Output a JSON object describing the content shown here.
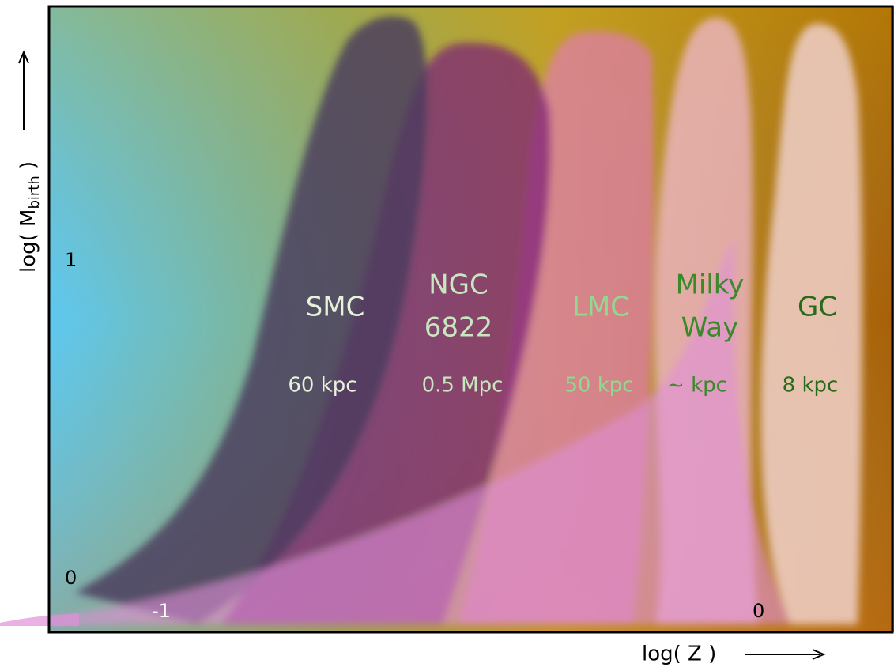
{
  "axes": {
    "y_label": {
      "main": "log( M",
      "sub": "birth",
      "end": " )"
    },
    "x_label": "log( Z )",
    "y_ticks": [
      "1",
      "0"
    ],
    "x_ticks": [
      "-1",
      "0"
    ]
  },
  "regions": [
    {
      "name_lines": [
        "SMC"
      ],
      "distance": "60 kpc"
    },
    {
      "name_lines": [
        "NGC",
        "6822"
      ],
      "distance": "0.5 Mpc"
    },
    {
      "name_lines": [
        "LMC"
      ],
      "distance": "50 kpc"
    },
    {
      "name_lines": [
        "Milky",
        "Way"
      ],
      "distance": "~ kpc"
    },
    {
      "name_lines": [
        "GC"
      ],
      "distance": "8 kpc"
    }
  ]
}
